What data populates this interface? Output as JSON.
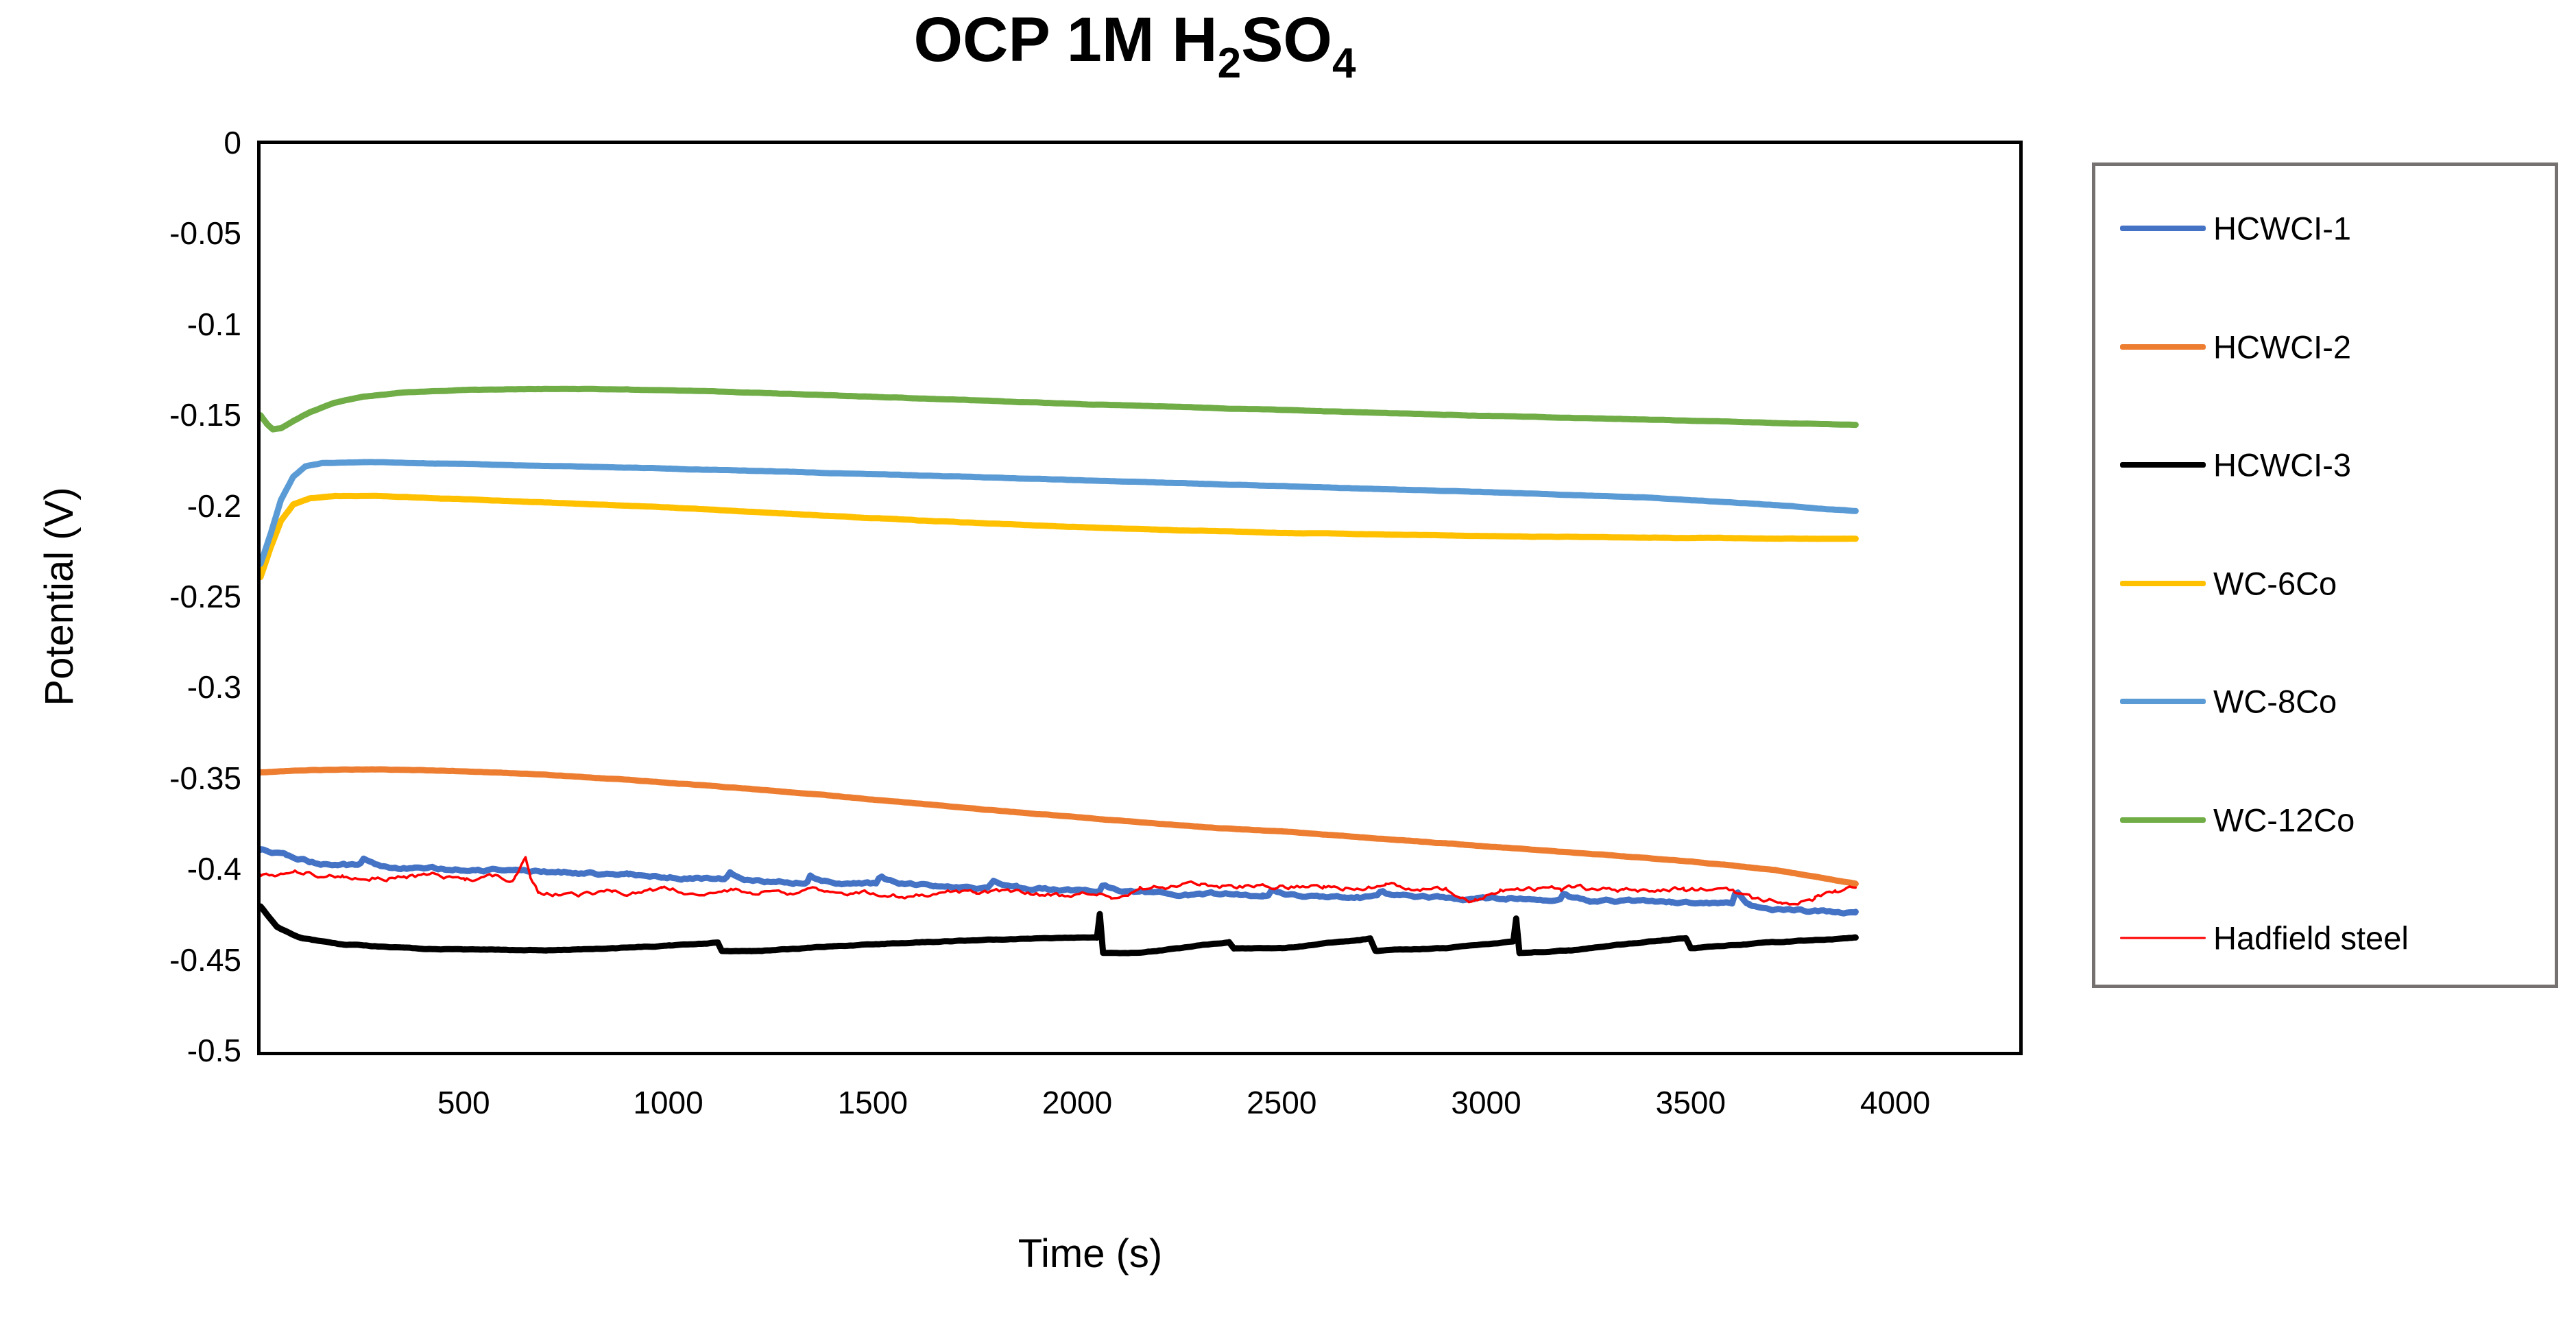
{
  "title": {
    "parts": [
      {
        "text": "OCP 1M H",
        "sub": false
      },
      {
        "text": "2",
        "sub": true
      },
      {
        "text": "SO",
        "sub": false
      },
      {
        "text": "4",
        "sub": true
      }
    ],
    "plain": "OCP 1M H2SO4"
  },
  "chart_data": {
    "type": "line",
    "title": "OCP 1M H2SO4",
    "xlabel": "Time (s)",
    "ylabel": "Potential (V)",
    "xlim": [
      0,
      4300
    ],
    "ylim": [
      -0.5,
      0
    ],
    "grid": false,
    "legend_position": "right",
    "x_ticks": [
      500,
      1000,
      1500,
      2000,
      2500,
      3000,
      3500,
      4000
    ],
    "x_tick_labels": [
      "500",
      "1000",
      "1500",
      "2000",
      "2500",
      "3000",
      "3500",
      "4000"
    ],
    "y_ticks": [
      0,
      -0.05,
      -0.1,
      -0.15,
      -0.2,
      -0.25,
      -0.3,
      -0.35,
      -0.4,
      -0.45,
      -0.5
    ],
    "y_tick_labels": [
      "0",
      "-0.05",
      "-0.1",
      "-0.15",
      "-0.2",
      "-0.25",
      "-0.3",
      "-0.35",
      "-0.4",
      "-0.45",
      "-0.5"
    ],
    "axis_color": "#000000",
    "legend_border_color": "#767171",
    "series": [
      {
        "name": "HCWCI-1",
        "color": "#4472C4",
        "stroke_width": 9,
        "noise": 0.0008,
        "spikes": [
          [
            250,
            0.004
          ],
          [
            1146,
            0.0045
          ],
          [
            1342,
            0.0045
          ],
          [
            1514,
            0.0048
          ],
          [
            1789,
            0.0042
          ],
          [
            2060,
            0.0045
          ],
          [
            2472,
            0.0035
          ],
          [
            2740,
            0.0035
          ],
          [
            3186,
            0.0038
          ],
          [
            3607,
            0.0085
          ]
        ],
        "points": [
          [
            0,
            -0.3885
          ],
          [
            60,
            -0.392
          ],
          [
            120,
            -0.3952
          ],
          [
            200,
            -0.3972
          ],
          [
            300,
            -0.3985
          ],
          [
            450,
            -0.3994
          ],
          [
            600,
            -0.4003
          ],
          [
            750,
            -0.4014
          ],
          [
            900,
            -0.4028
          ],
          [
            1050,
            -0.4042
          ],
          [
            1250,
            -0.4062
          ],
          [
            1450,
            -0.4072
          ],
          [
            1650,
            -0.4083
          ],
          [
            1850,
            -0.4095
          ],
          [
            2050,
            -0.4118
          ],
          [
            2250,
            -0.4128
          ],
          [
            2450,
            -0.4138
          ],
          [
            2650,
            -0.4145
          ],
          [
            2850,
            -0.4152
          ],
          [
            3050,
            -0.4158
          ],
          [
            3250,
            -0.4168
          ],
          [
            3450,
            -0.4175
          ],
          [
            3590,
            -0.4178
          ],
          [
            3640,
            -0.4212
          ],
          [
            3750,
            -0.4222
          ],
          [
            3900,
            -0.4228
          ]
        ]
      },
      {
        "name": "HCWCI-2",
        "color": "#ED7D31",
        "stroke_width": 9,
        "noise": 0.00012,
        "spikes": [],
        "points": [
          [
            0,
            -0.3462
          ],
          [
            120,
            -0.3448
          ],
          [
            300,
            -0.3444
          ],
          [
            500,
            -0.3455
          ],
          [
            700,
            -0.3475
          ],
          [
            900,
            -0.3502
          ],
          [
            1100,
            -0.3535
          ],
          [
            1300,
            -0.357
          ],
          [
            1500,
            -0.3612
          ],
          [
            1700,
            -0.3652
          ],
          [
            1900,
            -0.369
          ],
          [
            2100,
            -0.3726
          ],
          [
            2300,
            -0.3762
          ],
          [
            2500,
            -0.3787
          ],
          [
            2700,
            -0.382
          ],
          [
            2900,
            -0.3852
          ],
          [
            3100,
            -0.3885
          ],
          [
            3300,
            -0.3918
          ],
          [
            3500,
            -0.3952
          ],
          [
            3700,
            -0.3998
          ],
          [
            3900,
            -0.4075
          ]
        ]
      },
      {
        "name": "HCWCI-3",
        "color": "#000000",
        "stroke_width": 9,
        "noise": 0.00022,
        "spikes": [],
        "points": [
          [
            0,
            -0.42
          ],
          [
            40,
            -0.4315
          ],
          [
            100,
            -0.4375
          ],
          [
            200,
            -0.4408
          ],
          [
            350,
            -0.4428
          ],
          [
            500,
            -0.4437
          ],
          [
            700,
            -0.444
          ],
          [
            850,
            -0.4432
          ],
          [
            1000,
            -0.4415
          ],
          [
            1100,
            -0.4402
          ],
          [
            1118,
            -0.4398
          ],
          [
            1128,
            -0.4445
          ],
          [
            1200,
            -0.4448
          ],
          [
            1400,
            -0.4419
          ],
          [
            1600,
            -0.4398
          ],
          [
            1800,
            -0.4383
          ],
          [
            2000,
            -0.4372
          ],
          [
            2045,
            -0.4368
          ],
          [
            2052,
            -0.424
          ],
          [
            2060,
            -0.4452
          ],
          [
            2150,
            -0.4455
          ],
          [
            2368,
            -0.4396
          ],
          [
            2380,
            -0.4432
          ],
          [
            2500,
            -0.4428
          ],
          [
            2713,
            -0.4376
          ],
          [
            2726,
            -0.4445
          ],
          [
            2900,
            -0.4428
          ],
          [
            3063,
            -0.4392
          ],
          [
            3070,
            -0.4265
          ],
          [
            3078,
            -0.4455
          ],
          [
            3200,
            -0.4442
          ],
          [
            3485,
            -0.4372
          ],
          [
            3497,
            -0.4428
          ],
          [
            3700,
            -0.4398
          ],
          [
            3900,
            -0.4372
          ]
        ]
      },
      {
        "name": "WC-6Co",
        "color": "#FFC000",
        "stroke_width": 9,
        "noise": 0.0001,
        "spikes": [],
        "points": [
          [
            0,
            -0.2385
          ],
          [
            25,
            -0.222
          ],
          [
            50,
            -0.2075
          ],
          [
            80,
            -0.1985
          ],
          [
            120,
            -0.1952
          ],
          [
            180,
            -0.194
          ],
          [
            280,
            -0.1938
          ],
          [
            450,
            -0.1952
          ],
          [
            700,
            -0.1975
          ],
          [
            1000,
            -0.2002
          ],
          [
            1300,
            -0.2038
          ],
          [
            1600,
            -0.2072
          ],
          [
            1900,
            -0.2102
          ],
          [
            2200,
            -0.2125
          ],
          [
            2500,
            -0.2142
          ],
          [
            2800,
            -0.2153
          ],
          [
            3100,
            -0.2162
          ],
          [
            3400,
            -0.2168
          ],
          [
            3700,
            -0.2173
          ],
          [
            3900,
            -0.2175
          ]
        ]
      },
      {
        "name": "WC-8Co",
        "color": "#5B9BD5",
        "stroke_width": 9,
        "noise": 0.0001,
        "spikes": [],
        "points": [
          [
            0,
            -0.2312
          ],
          [
            25,
            -0.2145
          ],
          [
            50,
            -0.196
          ],
          [
            80,
            -0.1832
          ],
          [
            110,
            -0.1775
          ],
          [
            150,
            -0.1758
          ],
          [
            250,
            -0.1752
          ],
          [
            400,
            -0.1758
          ],
          [
            700,
            -0.1772
          ],
          [
            1000,
            -0.1788
          ],
          [
            1300,
            -0.1806
          ],
          [
            1600,
            -0.1825
          ],
          [
            1900,
            -0.1845
          ],
          [
            2200,
            -0.1865
          ],
          [
            2500,
            -0.1885
          ],
          [
            2800,
            -0.1905
          ],
          [
            3100,
            -0.1925
          ],
          [
            3400,
            -0.1948
          ],
          [
            3700,
            -0.1988
          ],
          [
            3900,
            -0.2022
          ]
        ]
      },
      {
        "name": "WC-12Co",
        "color": "#70AD47",
        "stroke_width": 9,
        "noise": 0.0001,
        "spikes": [],
        "points": [
          [
            0,
            -0.1495
          ],
          [
            15,
            -0.154
          ],
          [
            30,
            -0.1572
          ],
          [
            50,
            -0.1565
          ],
          [
            80,
            -0.1525
          ],
          [
            120,
            -0.1478
          ],
          [
            180,
            -0.1425
          ],
          [
            250,
            -0.1392
          ],
          [
            350,
            -0.1368
          ],
          [
            500,
            -0.1355
          ],
          [
            700,
            -0.1349
          ],
          [
            900,
            -0.1352
          ],
          [
            1100,
            -0.1362
          ],
          [
            1400,
            -0.1385
          ],
          [
            1700,
            -0.1408
          ],
          [
            2000,
            -0.1432
          ],
          [
            2300,
            -0.1452
          ],
          [
            2600,
            -0.1472
          ],
          [
            2900,
            -0.1492
          ],
          [
            3200,
            -0.1508
          ],
          [
            3500,
            -0.1524
          ],
          [
            3700,
            -0.1536
          ],
          [
            3900,
            -0.1548
          ]
        ]
      },
      {
        "name": "Hadfield steel",
        "color": "#FF0000",
        "stroke_width": 3.5,
        "noise": 0.0016,
        "spikes": [],
        "points": [
          [
            0,
            -0.4028
          ],
          [
            80,
            -0.4018
          ],
          [
            200,
            -0.4022
          ],
          [
            350,
            -0.4032
          ],
          [
            500,
            -0.404
          ],
          [
            620,
            -0.4046
          ],
          [
            648,
            -0.3928
          ],
          [
            660,
            -0.404
          ],
          [
            680,
            -0.4125
          ],
          [
            760,
            -0.4138
          ],
          [
            860,
            -0.4125
          ],
          [
            980,
            -0.4112
          ],
          [
            1150,
            -0.4115
          ],
          [
            1350,
            -0.4122
          ],
          [
            1550,
            -0.4128
          ],
          [
            1750,
            -0.4125
          ],
          [
            1950,
            -0.4135
          ],
          [
            2080,
            -0.4138
          ],
          [
            2150,
            -0.4098
          ],
          [
            2300,
            -0.4085
          ],
          [
            2450,
            -0.4088
          ],
          [
            2600,
            -0.4092
          ],
          [
            2750,
            -0.4092
          ],
          [
            2900,
            -0.4098
          ],
          [
            2970,
            -0.4165
          ],
          [
            3030,
            -0.4108
          ],
          [
            3180,
            -0.4102
          ],
          [
            3330,
            -0.4108
          ],
          [
            3480,
            -0.4105
          ],
          [
            3600,
            -0.4112
          ],
          [
            3650,
            -0.4165
          ],
          [
            3720,
            -0.4172
          ],
          [
            3800,
            -0.4162
          ],
          [
            3850,
            -0.4128
          ],
          [
            3900,
            -0.4088
          ]
        ]
      }
    ]
  }
}
